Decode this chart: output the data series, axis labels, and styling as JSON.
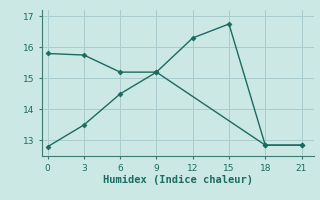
{
  "xlabel": "Humidex (Indice chaleur)",
  "bg_color": "#cce8e4",
  "grid_color": "#aacccc",
  "line_color": "#1a6b60",
  "line1_x": [
    0,
    3,
    6,
    9,
    18,
    21
  ],
  "line1_y": [
    15.8,
    15.75,
    15.2,
    15.2,
    12.85,
    12.85
  ],
  "line2_x": [
    0,
    3,
    6,
    9,
    12,
    15,
    18,
    21
  ],
  "line2_y": [
    12.8,
    13.5,
    14.5,
    15.2,
    16.3,
    16.75,
    12.85,
    12.85
  ],
  "xlim": [
    -0.5,
    22
  ],
  "ylim": [
    12.5,
    17.2
  ],
  "xticks": [
    0,
    3,
    6,
    9,
    12,
    15,
    18,
    21
  ],
  "yticks": [
    13,
    14,
    15,
    16,
    17
  ],
  "marker": "D",
  "marker_size": 2.5,
  "line_width": 1.0,
  "xlabel_fontsize": 7.5,
  "tick_fontsize": 6.5
}
